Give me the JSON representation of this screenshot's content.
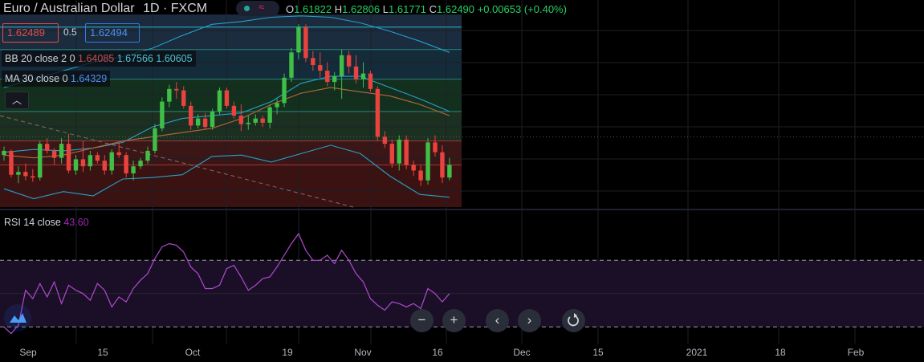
{
  "header": {
    "symbol": "Euro / Australian Dollar",
    "interval": "1D",
    "exchange": "FXCM",
    "wave_glyph": "≈",
    "ohlc": {
      "o_label": "O",
      "o": "1.61822",
      "h_label": "H",
      "h": "1.62806",
      "l_label": "L",
      "l": "1.61771",
      "c_label": "C",
      "c": "1.62490",
      "change": "+0.00653 (+0.40%)"
    }
  },
  "quote": {
    "bid": "1.62489",
    "spread": "0.5",
    "ask": "1.62494"
  },
  "indicators": {
    "bb": {
      "label": "BB 20 close 2 0",
      "basis": "1.64085",
      "upper": "1.67566",
      "lower": "1.60605"
    },
    "ma": {
      "label": "MA 30 close 0",
      "value": "1.64329"
    },
    "rsi": {
      "label": "RSI 14 close",
      "value": "43.60"
    }
  },
  "controls": {
    "collapse_icon": "chevron-up-icon",
    "zoom_out": "−",
    "zoom_in": "+",
    "prev": "‹",
    "next": "›",
    "reset": "reset-icon"
  },
  "colors": {
    "up": "#3fbf46",
    "down": "#e8433f",
    "bb": "#26a0c9",
    "ma": "#b56a3a",
    "rsi": "#b04ad0"
  },
  "chart_data": [
    {
      "type": "candlestick",
      "x_ticks": [
        "Sep",
        "15",
        "Oct",
        "19",
        "Nov",
        "16",
        "Dec",
        "15",
        "2021",
        "18",
        "Feb"
      ],
      "ohlc": [
        [
          1.612,
          1.618,
          1.608,
          1.615
        ],
        [
          1.615,
          1.616,
          1.596,
          1.598
        ],
        [
          1.598,
          1.604,
          1.592,
          1.6
        ],
        [
          1.6,
          1.606,
          1.594,
          1.597
        ],
        [
          1.597,
          1.602,
          1.593,
          1.596
        ],
        [
          1.596,
          1.622,
          1.594,
          1.62
        ],
        [
          1.62,
          1.624,
          1.613,
          1.615
        ],
        [
          1.615,
          1.617,
          1.605,
          1.61
        ],
        [
          1.61,
          1.624,
          1.606,
          1.62
        ],
        [
          1.62,
          1.627,
          1.599,
          1.601
        ],
        [
          1.601,
          1.612,
          1.598,
          1.609
        ],
        [
          1.609,
          1.622,
          1.6,
          1.604
        ],
        [
          1.604,
          1.615,
          1.601,
          1.612
        ],
        [
          1.612,
          1.614,
          1.606,
          1.608
        ],
        [
          1.608,
          1.612,
          1.598,
          1.601
        ],
        [
          1.601,
          1.616,
          1.598,
          1.614
        ],
        [
          1.614,
          1.621,
          1.61,
          1.612
        ],
        [
          1.612,
          1.614,
          1.596,
          1.599
        ],
        [
          1.599,
          1.608,
          1.594,
          1.604
        ],
        [
          1.604,
          1.61,
          1.602,
          1.608
        ],
        [
          1.608,
          1.618,
          1.606,
          1.615
        ],
        [
          1.615,
          1.634,
          1.613,
          1.631
        ],
        [
          1.631,
          1.653,
          1.629,
          1.65
        ],
        [
          1.65,
          1.662,
          1.646,
          1.659
        ],
        [
          1.659,
          1.664,
          1.652,
          1.658
        ],
        [
          1.658,
          1.661,
          1.645,
          1.647
        ],
        [
          1.647,
          1.65,
          1.63,
          1.633
        ],
        [
          1.633,
          1.641,
          1.631,
          1.638
        ],
        [
          1.638,
          1.642,
          1.63,
          1.632
        ],
        [
          1.632,
          1.645,
          1.63,
          1.643
        ],
        [
          1.643,
          1.66,
          1.641,
          1.658
        ],
        [
          1.658,
          1.66,
          1.645,
          1.647
        ],
        [
          1.647,
          1.65,
          1.638,
          1.64
        ],
        [
          1.64,
          1.648,
          1.629,
          1.634
        ],
        [
          1.634,
          1.64,
          1.63,
          1.635
        ],
        [
          1.635,
          1.641,
          1.633,
          1.638
        ],
        [
          1.638,
          1.64,
          1.632,
          1.635
        ],
        [
          1.635,
          1.648,
          1.631,
          1.646
        ],
        [
          1.646,
          1.652,
          1.641,
          1.649
        ],
        [
          1.649,
          1.67,
          1.646,
          1.667
        ],
        [
          1.667,
          1.688,
          1.664,
          1.685
        ],
        [
          1.685,
          1.705,
          1.68,
          1.703
        ],
        [
          1.703,
          1.705,
          1.678,
          1.681
        ],
        [
          1.681,
          1.686,
          1.672,
          1.676
        ],
        [
          1.676,
          1.685,
          1.667,
          1.672
        ],
        [
          1.672,
          1.678,
          1.661,
          1.664
        ],
        [
          1.664,
          1.671,
          1.658,
          1.668
        ],
        [
          1.668,
          1.687,
          1.652,
          1.683
        ],
        [
          1.683,
          1.686,
          1.67,
          1.675
        ],
        [
          1.675,
          1.683,
          1.663,
          1.666
        ],
        [
          1.666,
          1.678,
          1.66,
          1.67
        ],
        [
          1.67,
          1.672,
          1.657,
          1.659
        ],
        [
          1.659,
          1.661,
          1.622,
          1.625
        ],
        [
          1.625,
          1.629,
          1.617,
          1.62
        ],
        [
          1.62,
          1.623,
          1.603,
          1.606
        ],
        [
          1.606,
          1.626,
          1.601,
          1.623
        ],
        [
          1.623,
          1.626,
          1.602,
          1.605
        ],
        [
          1.605,
          1.608,
          1.597,
          1.601
        ],
        [
          1.601,
          1.605,
          1.59,
          1.594
        ],
        [
          1.594,
          1.624,
          1.591,
          1.621
        ],
        [
          1.621,
          1.626,
          1.611,
          1.614
        ],
        [
          1.614,
          1.619,
          1.592,
          1.596
        ],
        [
          1.596,
          1.61,
          1.594,
          1.605
        ]
      ],
      "bollinger": {
        "upper": [
          1.66,
          1.666,
          1.672,
          1.678,
          1.682,
          1.688,
          1.697,
          1.705,
          1.707,
          1.71,
          1.711,
          1.71,
          1.706,
          1.7,
          1.693,
          1.685
        ],
        "basis": [
          1.614,
          1.616,
          1.615,
          1.617,
          1.621,
          1.632,
          1.638,
          1.64,
          1.642,
          1.65,
          1.663,
          1.668,
          1.668,
          1.66,
          1.652,
          1.643
        ],
        "lower": [
          1.588,
          1.581,
          1.586,
          1.583,
          1.595,
          1.596,
          1.598,
          1.611,
          1.612,
          1.607,
          1.613,
          1.619,
          1.613,
          1.597,
          1.584,
          1.582
        ]
      },
      "ma30": [
        1.612,
        1.61,
        1.612,
        1.617,
        1.622,
        1.625,
        1.628,
        1.631,
        1.638,
        1.648,
        1.656,
        1.66,
        1.657,
        1.654,
        1.648,
        1.64
      ],
      "dashed_trend": [
        1.64,
        1.575
      ],
      "levels": [
        1.703,
        1.687,
        1.666,
        1.643,
        1.622,
        1.605
      ],
      "current_price": 1.6249
    },
    {
      "type": "line",
      "name": "RSI 14 close",
      "values": [
        30,
        26,
        31,
        52,
        47,
        56,
        48,
        57,
        44,
        55,
        52,
        50,
        46,
        56,
        52,
        42,
        48,
        45,
        53,
        58,
        62,
        71,
        78,
        80,
        79,
        75,
        66,
        62,
        53,
        53,
        55,
        65,
        67,
        60,
        52,
        55,
        59,
        60,
        66,
        73,
        80,
        86,
        76,
        70,
        70,
        73,
        68,
        76,
        70,
        62,
        57,
        47,
        43,
        40,
        45,
        44,
        42,
        44,
        41,
        53,
        50,
        45,
        50
      ],
      "ylim": [
        20,
        100
      ],
      "levels": [
        70,
        30
      ]
    }
  ]
}
